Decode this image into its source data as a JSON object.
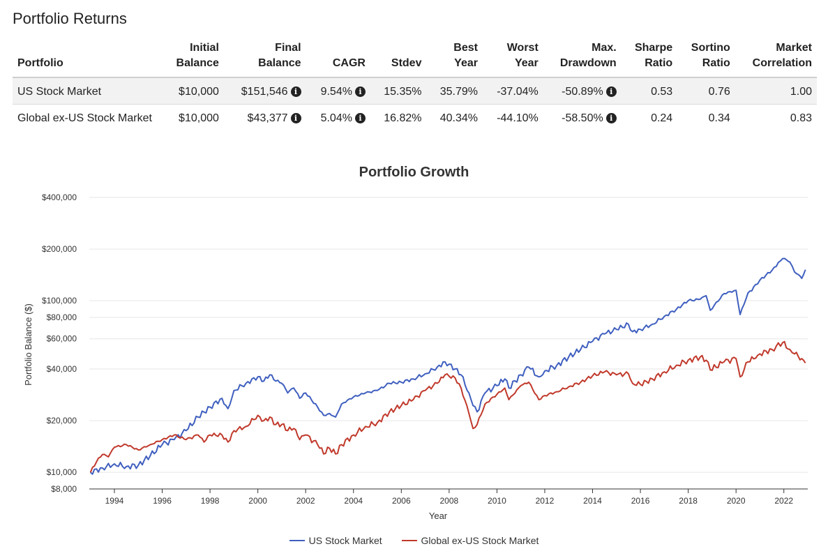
{
  "page_title": "Portfolio Returns",
  "table": {
    "headers": [
      [
        "Portfolio"
      ],
      [
        "Initial",
        "Balance"
      ],
      [
        "Final",
        "Balance"
      ],
      [
        "CAGR"
      ],
      [
        "Stdev"
      ],
      [
        "Best",
        "Year"
      ],
      [
        "Worst",
        "Year"
      ],
      [
        "Max.",
        "Drawdown"
      ],
      [
        "Sharpe",
        "Ratio"
      ],
      [
        "Sortino",
        "Ratio"
      ],
      [
        "Market",
        "Correlation"
      ]
    ],
    "rows": [
      {
        "portfolio": "US Stock Market",
        "initial_balance": "$10,000",
        "final_balance": "$151,546",
        "cagr": "9.54%",
        "stdev": "15.35%",
        "best_year": "35.79%",
        "worst_year": "-37.04%",
        "max_drawdown": "-50.89%",
        "sharpe": "0.53",
        "sortino": "0.76",
        "market_correlation": "1.00"
      },
      {
        "portfolio": "Global ex-US Stock Market",
        "initial_balance": "$10,000",
        "final_balance": "$43,377",
        "cagr": "5.04%",
        "stdev": "16.82%",
        "best_year": "40.34%",
        "worst_year": "-44.10%",
        "max_drawdown": "-58.50%",
        "sharpe": "0.24",
        "sortino": "0.34",
        "market_correlation": "0.83"
      }
    ],
    "info_icon": "info-icon",
    "info_glyph": "i"
  },
  "colors": {
    "us": "#3f5fbf",
    "global": "#c0392b",
    "grid": "#e6e6e6",
    "axis_text": "#333333"
  },
  "chart_data": {
    "type": "line",
    "title": "Portfolio Growth",
    "xlabel": "Year",
    "ylabel": "Portfolio Balance ($)",
    "yscale": "log",
    "ylim": [
      8000,
      400000
    ],
    "xlim": [
      1992.95,
      2023.0
    ],
    "y_ticks": [
      {
        "value": 400000,
        "label": "$400,000"
      },
      {
        "value": 200000,
        "label": "$200,000"
      },
      {
        "value": 100000,
        "label": "$100,000"
      },
      {
        "value": 80000,
        "label": "$80,000"
      },
      {
        "value": 60000,
        "label": "$60,000"
      },
      {
        "value": 40000,
        "label": "$40,000"
      },
      {
        "value": 20000,
        "label": "$20,000"
      },
      {
        "value": 10000,
        "label": "$10,000"
      },
      {
        "value": 8000,
        "label": "$8,000"
      }
    ],
    "x_ticks": [
      "1994",
      "1996",
      "1998",
      "2000",
      "2002",
      "2004",
      "2006",
      "2008",
      "2010",
      "2012",
      "2014",
      "2016",
      "2018",
      "2020",
      "2022"
    ],
    "legend": "bottom-center",
    "series": [
      {
        "name": "US Stock Market",
        "x": [
          1993.0,
          1993.5,
          1994.0,
          1994.5,
          1995.0,
          1995.5,
          1996.0,
          1996.5,
          1997.0,
          1997.5,
          1998.0,
          1998.5,
          1998.75,
          1999.0,
          1999.5,
          2000.0,
          2000.25,
          2000.5,
          2000.75,
          2001.0,
          2001.25,
          2001.5,
          2001.75,
          2002.0,
          2002.5,
          2002.75,
          2003.0,
          2003.25,
          2003.5,
          2004.0,
          2004.5,
          2005.0,
          2005.5,
          2006.0,
          2006.5,
          2007.0,
          2007.5,
          2007.83,
          2008.25,
          2008.5,
          2008.83,
          2009.0,
          2009.17,
          2009.5,
          2010.0,
          2010.33,
          2010.5,
          2011.0,
          2011.33,
          2011.75,
          2012.0,
          2012.5,
          2013.0,
          2013.5,
          2014.0,
          2014.5,
          2015.0,
          2015.5,
          2015.67,
          2016.0,
          2016.5,
          2017.0,
          2017.5,
          2018.0,
          2018.5,
          2018.75,
          2018.92,
          2019.5,
          2020.0,
          2020.17,
          2020.5,
          2020.9,
          2021.0,
          2021.5,
          2021.95,
          2022.25,
          2022.45,
          2022.75,
          2022.9
        ],
        "y": [
          10000,
          10600,
          11200,
          10800,
          11000,
          12500,
          14500,
          15500,
          17500,
          21000,
          24000,
          27000,
          23500,
          30000,
          33000,
          36000,
          34000,
          37000,
          34000,
          33000,
          29000,
          31000,
          27000,
          29000,
          24000,
          21500,
          22000,
          21000,
          25000,
          27500,
          29000,
          30000,
          33000,
          33500,
          35000,
          37500,
          41000,
          44000,
          40000,
          37000,
          29000,
          24500,
          22500,
          29000,
          32000,
          35000,
          31000,
          37000,
          41000,
          36000,
          39000,
          42000,
          47000,
          52000,
          58000,
          64000,
          68000,
          73000,
          66000,
          68000,
          73000,
          81000,
          89000,
          100000,
          102000,
          107000,
          88000,
          110000,
          115000,
          83000,
          111000,
          125000,
          132000,
          150000,
          176000,
          168000,
          147000,
          135000,
          151546
        ]
      },
      {
        "name": "Global ex-US Stock Market",
        "x": [
          1993.0,
          1993.25,
          1993.5,
          1993.75,
          1994.0,
          1994.5,
          1995.0,
          1995.5,
          1996.0,
          1996.5,
          1997.0,
          1997.5,
          1997.75,
          1998.0,
          1998.5,
          1998.75,
          1999.0,
          1999.5,
          2000.0,
          2000.25,
          2000.5,
          2000.75,
          2001.0,
          2001.25,
          2001.5,
          2001.75,
          2002.0,
          2002.5,
          2002.75,
          2003.0,
          2003.25,
          2003.5,
          2004.0,
          2004.5,
          2005.0,
          2005.5,
          2006.0,
          2006.5,
          2007.0,
          2007.5,
          2007.83,
          2008.25,
          2008.5,
          2008.83,
          2009.0,
          2009.17,
          2009.5,
          2010.0,
          2010.33,
          2010.5,
          2011.0,
          2011.33,
          2011.75,
          2012.0,
          2012.5,
          2013.0,
          2013.5,
          2014.0,
          2014.5,
          2015.0,
          2015.5,
          2015.67,
          2016.0,
          2016.5,
          2017.0,
          2017.5,
          2018.0,
          2018.5,
          2018.75,
          2018.92,
          2019.5,
          2020.0,
          2020.17,
          2020.5,
          2020.9,
          2021.0,
          2021.5,
          2021.95,
          2022.25,
          2022.45,
          2022.75,
          2022.9
        ],
        "y": [
          10000,
          11500,
          12700,
          12300,
          14000,
          14500,
          13500,
          14500,
          15500,
          16500,
          15500,
          16500,
          15000,
          16500,
          16500,
          15000,
          17500,
          18500,
          21500,
          20000,
          21000,
          19000,
          19000,
          17500,
          18000,
          15500,
          16500,
          14500,
          12800,
          13800,
          12800,
          14500,
          16500,
          18500,
          19500,
          22500,
          24500,
          26500,
          30000,
          33000,
          37000,
          35500,
          31000,
          22000,
          18000,
          19000,
          25000,
          28500,
          31000,
          26500,
          32000,
          33500,
          26500,
          28000,
          29500,
          31500,
          33500,
          36500,
          38500,
          37000,
          37500,
          33000,
          32500,
          35000,
          38500,
          42000,
          45000,
          47000,
          45000,
          39500,
          44000,
          46000,
          36000,
          44000,
          48000,
          49000,
          52000,
          57000,
          52000,
          49000,
          46000,
          43377
        ]
      }
    ]
  }
}
